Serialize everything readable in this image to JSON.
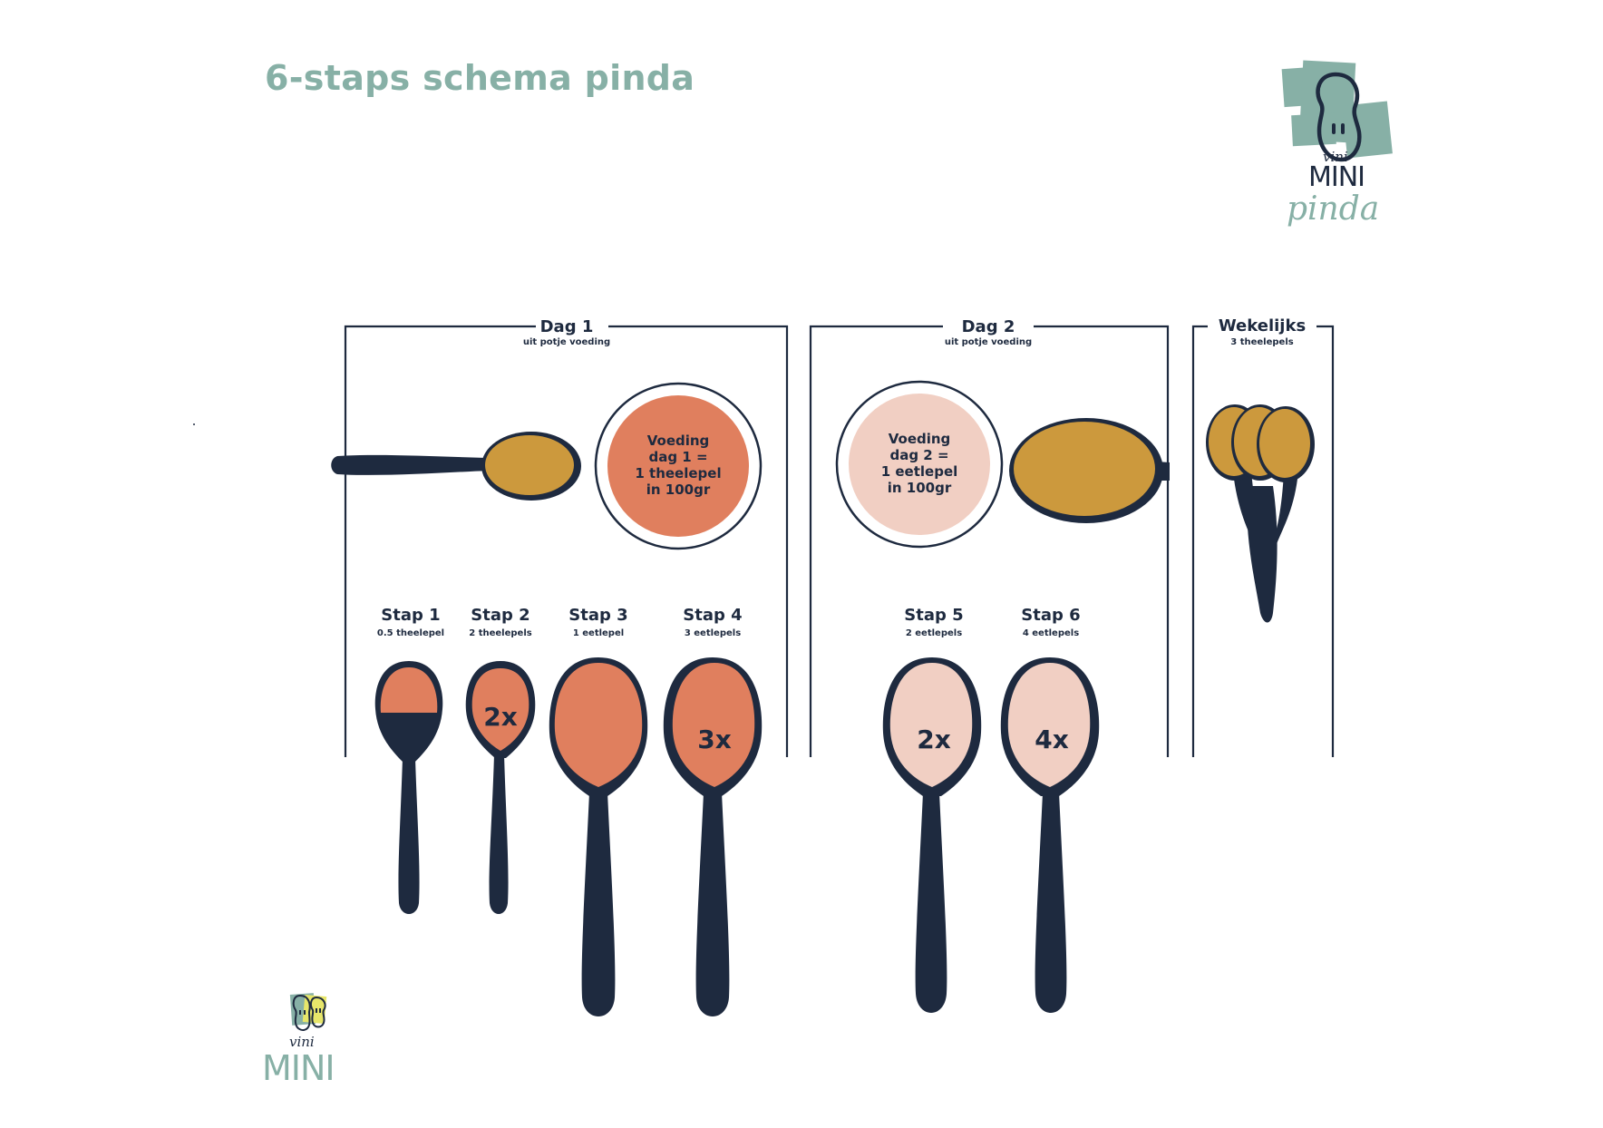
{
  "title": "6-staps schema pinda",
  "logo_top": {
    "vini": "vini",
    "mini": "MINI",
    "pinda": "pinda"
  },
  "logo_bottom": {
    "vini": "vini",
    "mini": "MINI"
  },
  "colors": {
    "title_teal": "#87b0a6",
    "navy": "#1e2a3f",
    "orange": "#e07f5e",
    "peach": "#f1cfc3",
    "mustard": "#cc993d"
  },
  "sections": [
    {
      "heading": "Dag 1",
      "subheading": "uit potje voeding"
    },
    {
      "heading": "Dag 2",
      "subheading": "uit potje voeding"
    },
    {
      "heading": "Wekelijks",
      "subheading": "3 theelepels"
    }
  ],
  "jars": [
    {
      "lines": [
        "Voeding",
        "dag 1 =",
        "1 theelepel",
        "in 100gr"
      ],
      "color": "orange"
    },
    {
      "lines": [
        "Voeding",
        "dag 2 =",
        "1 eetlepel",
        "in 100gr"
      ],
      "color": "peach"
    }
  ],
  "steps": [
    {
      "label": "Stap 1",
      "amount": "0.5 theelepel",
      "multiplier": "",
      "color": "orange",
      "fill_fraction": 0.5
    },
    {
      "label": "Stap 2",
      "amount": "2 theelepels",
      "multiplier": "2x",
      "color": "orange",
      "fill_fraction": 1
    },
    {
      "label": "Stap 3",
      "amount": "1 eetlepel",
      "multiplier": "",
      "color": "orange",
      "fill_fraction": 1
    },
    {
      "label": "Stap 4",
      "amount": "3 eetlepels",
      "multiplier": "3x",
      "color": "orange",
      "fill_fraction": 1
    },
    {
      "label": "Stap 5",
      "amount": "2 eetlepels",
      "multiplier": "2x",
      "color": "peach",
      "fill_fraction": 1
    },
    {
      "label": "Stap 6",
      "amount": "4 eetlepels",
      "multiplier": "4x",
      "color": "peach",
      "fill_fraction": 1
    }
  ]
}
